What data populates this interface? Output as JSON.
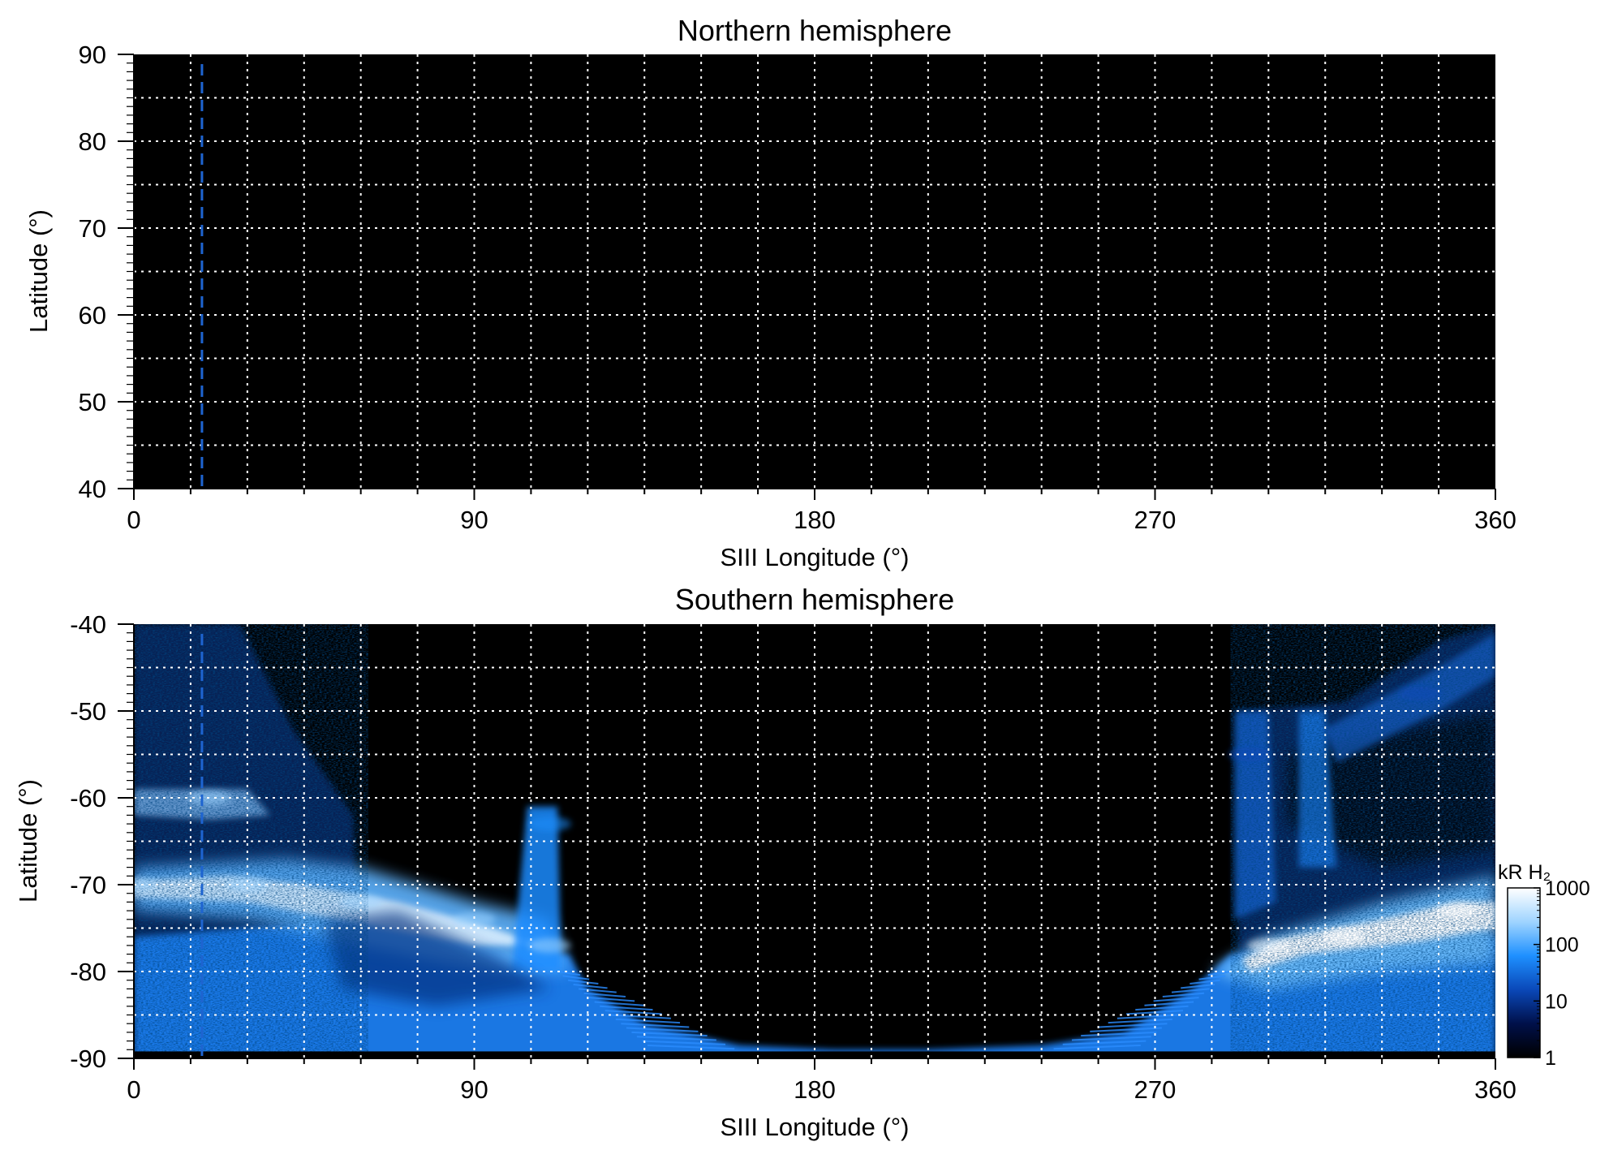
{
  "chart_data": [
    {
      "type": "heatmap",
      "title": "Northern hemisphere",
      "xlabel": "SIII Longitude (°)",
      "ylabel": "Latitude (°)",
      "xlim": [
        0,
        360
      ],
      "ylim": [
        40,
        90
      ],
      "x_ticks": [
        "0",
        "90",
        "180",
        "270",
        "360"
      ],
      "y_ticks": [
        "90",
        "80",
        "70",
        "60",
        "50",
        "40"
      ],
      "grid": true,
      "marker_longitude": 18,
      "marker_color": "#1e64d0",
      "background": "#000000",
      "emission": []
    },
    {
      "type": "heatmap",
      "title": "Southern hemisphere",
      "xlabel": "SIII Longitude (°)",
      "ylabel": "Latitude (°)",
      "xlim": [
        0,
        360
      ],
      "ylim": [
        -90,
        -40
      ],
      "x_ticks": [
        "0",
        "90",
        "180",
        "270",
        "360"
      ],
      "y_ticks": [
        "-40",
        "-50",
        "-60",
        "-70",
        "-80",
        "-90"
      ],
      "grid": true,
      "marker_longitude": 18,
      "marker_color": "#1e64d0",
      "background": "#000000",
      "colorbar": {
        "label": "kR H₂",
        "scale": "log",
        "range": [
          1,
          1000
        ],
        "ticks": [
          "1000",
          "100",
          "10",
          "1"
        ],
        "colors": [
          "#000000",
          "#00104a",
          "#0a48b8",
          "#1e90ff",
          "#9fd4ff",
          "#ffffff"
        ]
      },
      "emission": [
        {
          "lon": 0,
          "lat": -70,
          "kR": 400
        },
        {
          "lon": 30,
          "lat": -70,
          "kR": 500
        },
        {
          "lon": 60,
          "lat": -72,
          "kR": 300
        },
        {
          "lon": 90,
          "lat": -74,
          "kR": 500
        },
        {
          "lon": 110,
          "lat": -77,
          "kR": 300
        },
        {
          "lon": 20,
          "lat": -60,
          "kR": 300
        },
        {
          "lon": 110,
          "lat": -63,
          "kR": 60
        },
        {
          "lon": 300,
          "lat": -77,
          "kR": 1000
        },
        {
          "lon": 320,
          "lat": -76,
          "kR": 1000
        },
        {
          "lon": 350,
          "lat": -73,
          "kR": 1000
        },
        {
          "lon": 295,
          "lat": -55,
          "kR": 30
        },
        {
          "lon": 340,
          "lat": -48,
          "kR": 20
        }
      ]
    }
  ]
}
